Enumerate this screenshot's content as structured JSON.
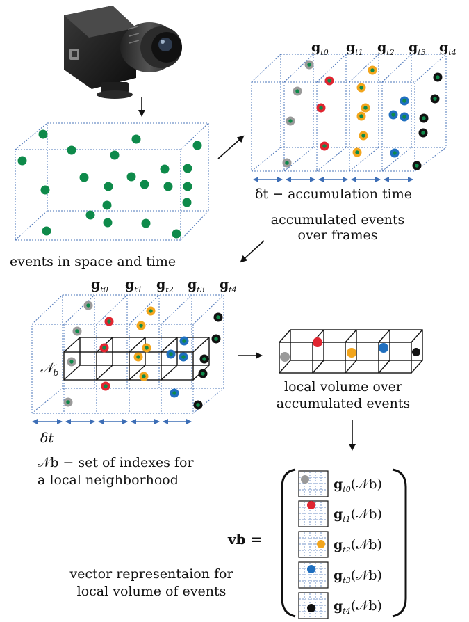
{
  "caption_events": "events in space and time",
  "caption_accumulated_line1": "accumulated events",
  "caption_accumulated_line2": "over frames",
  "accumulation_time_label": "δt − accumulation time",
  "delta_t": "δt",
  "g_symbol": "g",
  "g_subscripts": [
    "t0",
    "t1",
    "t2",
    "t3",
    "t4"
  ],
  "neighborhood_symbol": "𝒩",
  "neighborhood_subscript": "b",
  "neighborhood_def_line1": "𝒩b − set of indexes for",
  "neighborhood_def_line2": "a local neighborhood",
  "local_volume_line1": "local volume over",
  "local_volume_line2": "accumulated events",
  "vector_lhs": "vb =",
  "vector_caption_line1": "vector representaion for",
  "vector_caption_line2": "local volume of events",
  "vector_entry_suffix": "(𝒩b)",
  "colors": {
    "event_green": "#0e8a4a",
    "frame_gray": "#9a9a9a",
    "frame_red": "#e02530",
    "frame_orange": "#f2a51c",
    "frame_blue": "#1f6fbf",
    "frame_black": "#111111",
    "dotted_box": "#4a74b8",
    "arrow_blue": "#3d6eb6"
  },
  "icons": [
    "event-camera-icon"
  ]
}
